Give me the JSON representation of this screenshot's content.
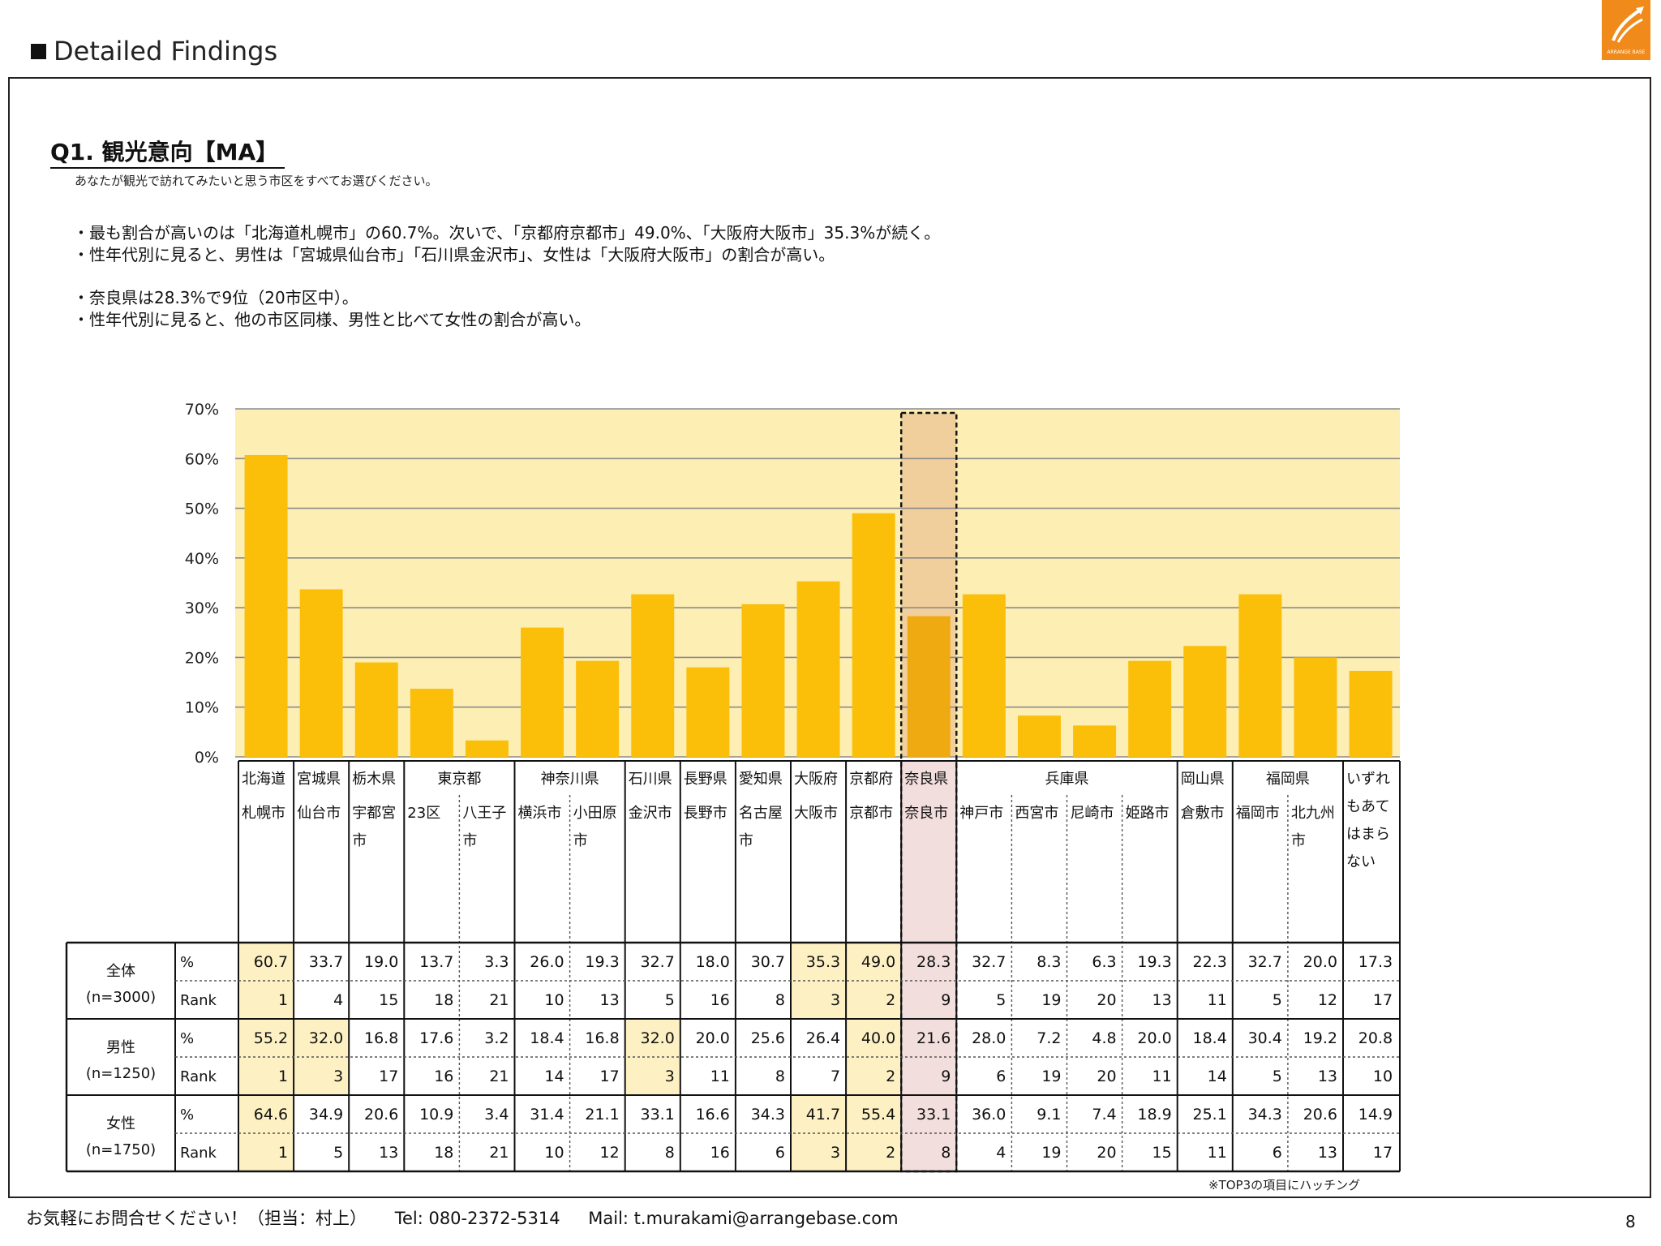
{
  "header": {
    "title": "Detailed Findings"
  },
  "logo": {
    "text": "ARRANGE BASE",
    "color": "#f08a1a"
  },
  "question": {
    "title": "Q1. 観光意向【MA】",
    "subtitle": "あなたが観光で訪れてみたいと思う市区をすべてお選びください。"
  },
  "bullets": [
    "・最も割合が高いのは「北海道札幌市」の60.7%。次いで、「京都府京都市」49.0%、「大阪府大阪市」35.3%が続く。",
    "・性年代別に見ると、男性は「宮城県仙台市」「石川県金沢市」、女性は「大阪府大阪市」の割合が高い。",
    "",
    "・奈良県は28.3%で9位（20市区中）。",
    "・性年代別に見ると、他の市区同様、男性と比べて女性の割合が高い。"
  ],
  "chart_data": {
    "type": "bar",
    "ylim": [
      0,
      70
    ],
    "yticks": [
      "0%",
      "10%",
      "20%",
      "30%",
      "40%",
      "50%",
      "60%",
      "70%"
    ],
    "values": [
      60.7,
      33.7,
      19.0,
      13.7,
      3.3,
      26.0,
      19.3,
      32.7,
      18.0,
      30.7,
      35.3,
      49.0,
      28.3,
      32.7,
      8.3,
      6.3,
      19.3,
      22.3,
      32.7,
      20.0,
      17.3
    ],
    "highlight_index": 12,
    "colors": {
      "bar": "#fbbf0a",
      "highlight_bar": "#efaa12",
      "bg": "#fdeeb4",
      "highlight_band": "#f0cf9c",
      "hatch": "#fdf1c4",
      "nara_col": "#f3dede"
    },
    "prefectures": [
      {
        "name": "北海道",
        "span": 1
      },
      {
        "name": "宮城県",
        "span": 1
      },
      {
        "name": "栃木県",
        "span": 1
      },
      {
        "name": "東京都",
        "span": 2
      },
      {
        "name": "神奈川県",
        "span": 2
      },
      {
        "name": "石川県",
        "span": 1
      },
      {
        "name": "長野県",
        "span": 1
      },
      {
        "name": "愛知県",
        "span": 1
      },
      {
        "name": "大阪府",
        "span": 1
      },
      {
        "name": "京都府",
        "span": 1
      },
      {
        "name": "奈良県",
        "span": 1
      },
      {
        "name": "兵庫県",
        "span": 4
      },
      {
        "name": "岡山県",
        "span": 1
      },
      {
        "name": "福岡県",
        "span": 2
      },
      {
        "name": "いずれ",
        "span": 1
      }
    ],
    "cities": [
      [
        "札幌市"
      ],
      [
        "仙台市"
      ],
      [
        "宇都宮",
        "市"
      ],
      [
        "23区"
      ],
      [
        "八王子",
        "市"
      ],
      [
        "横浜市"
      ],
      [
        "小田原",
        "市"
      ],
      [
        "金沢市"
      ],
      [
        "長野市"
      ],
      [
        "名古屋",
        "市"
      ],
      [
        "大阪市"
      ],
      [
        "京都市"
      ],
      [
        "奈良市"
      ],
      [
        "神戸市"
      ],
      [
        "西宮市"
      ],
      [
        "尼崎市"
      ],
      [
        "姫路市"
      ],
      [
        "倉敷市"
      ],
      [
        "福岡市"
      ],
      [
        "北九州",
        "市"
      ],
      [
        "もあて",
        "はまら",
        "ない"
      ]
    ],
    "groups": [
      {
        "label": "全体",
        "n": "(n=3000)",
        "pct": [
          "60.7",
          "33.7",
          "19.0",
          "13.7",
          "3.3",
          "26.0",
          "19.3",
          "32.7",
          "18.0",
          "30.7",
          "35.3",
          "49.0",
          "28.3",
          "32.7",
          "8.3",
          "6.3",
          "19.3",
          "22.3",
          "32.7",
          "20.0",
          "17.3"
        ],
        "rank": [
          "1",
          "4",
          "15",
          "18",
          "21",
          "10",
          "13",
          "5",
          "16",
          "8",
          "3",
          "2",
          "9",
          "5",
          "19",
          "20",
          "13",
          "11",
          "5",
          "12",
          "17"
        ],
        "top3": [
          0,
          10,
          11
        ]
      },
      {
        "label": "男性",
        "n": "(n=1250)",
        "pct": [
          "55.2",
          "32.0",
          "16.8",
          "17.6",
          "3.2",
          "18.4",
          "16.8",
          "32.0",
          "20.0",
          "25.6",
          "26.4",
          "40.0",
          "21.6",
          "28.0",
          "7.2",
          "4.8",
          "20.0",
          "18.4",
          "30.4",
          "19.2",
          "20.8"
        ],
        "rank": [
          "1",
          "3",
          "17",
          "16",
          "21",
          "14",
          "17",
          "3",
          "11",
          "8",
          "7",
          "2",
          "9",
          "6",
          "19",
          "20",
          "11",
          "14",
          "5",
          "13",
          "10"
        ],
        "top3": [
          0,
          1,
          7,
          11
        ]
      },
      {
        "label": "女性",
        "n": "(n=1750)",
        "pct": [
          "64.6",
          "34.9",
          "20.6",
          "10.9",
          "3.4",
          "31.4",
          "21.1",
          "33.1",
          "16.6",
          "34.3",
          "41.7",
          "55.4",
          "33.1",
          "36.0",
          "9.1",
          "7.4",
          "18.9",
          "25.1",
          "34.3",
          "20.6",
          "14.9"
        ],
        "rank": [
          "1",
          "5",
          "13",
          "18",
          "21",
          "10",
          "12",
          "8",
          "16",
          "6",
          "3",
          "2",
          "8",
          "4",
          "19",
          "20",
          "15",
          "11",
          "6",
          "13",
          "17"
        ],
        "top3": [
          0,
          10,
          11
        ]
      }
    ],
    "metric_labels": {
      "pct": "%",
      "rank": "Rank"
    }
  },
  "note": "※TOP3の項目にハッチング",
  "footer": {
    "contact": "お気軽にお問合せください！（担当：村上）",
    "tel": "Tel: 080-2372-5314",
    "mail": "Mail: t.murakami@arrangebase.com"
  },
  "page_number": "8"
}
